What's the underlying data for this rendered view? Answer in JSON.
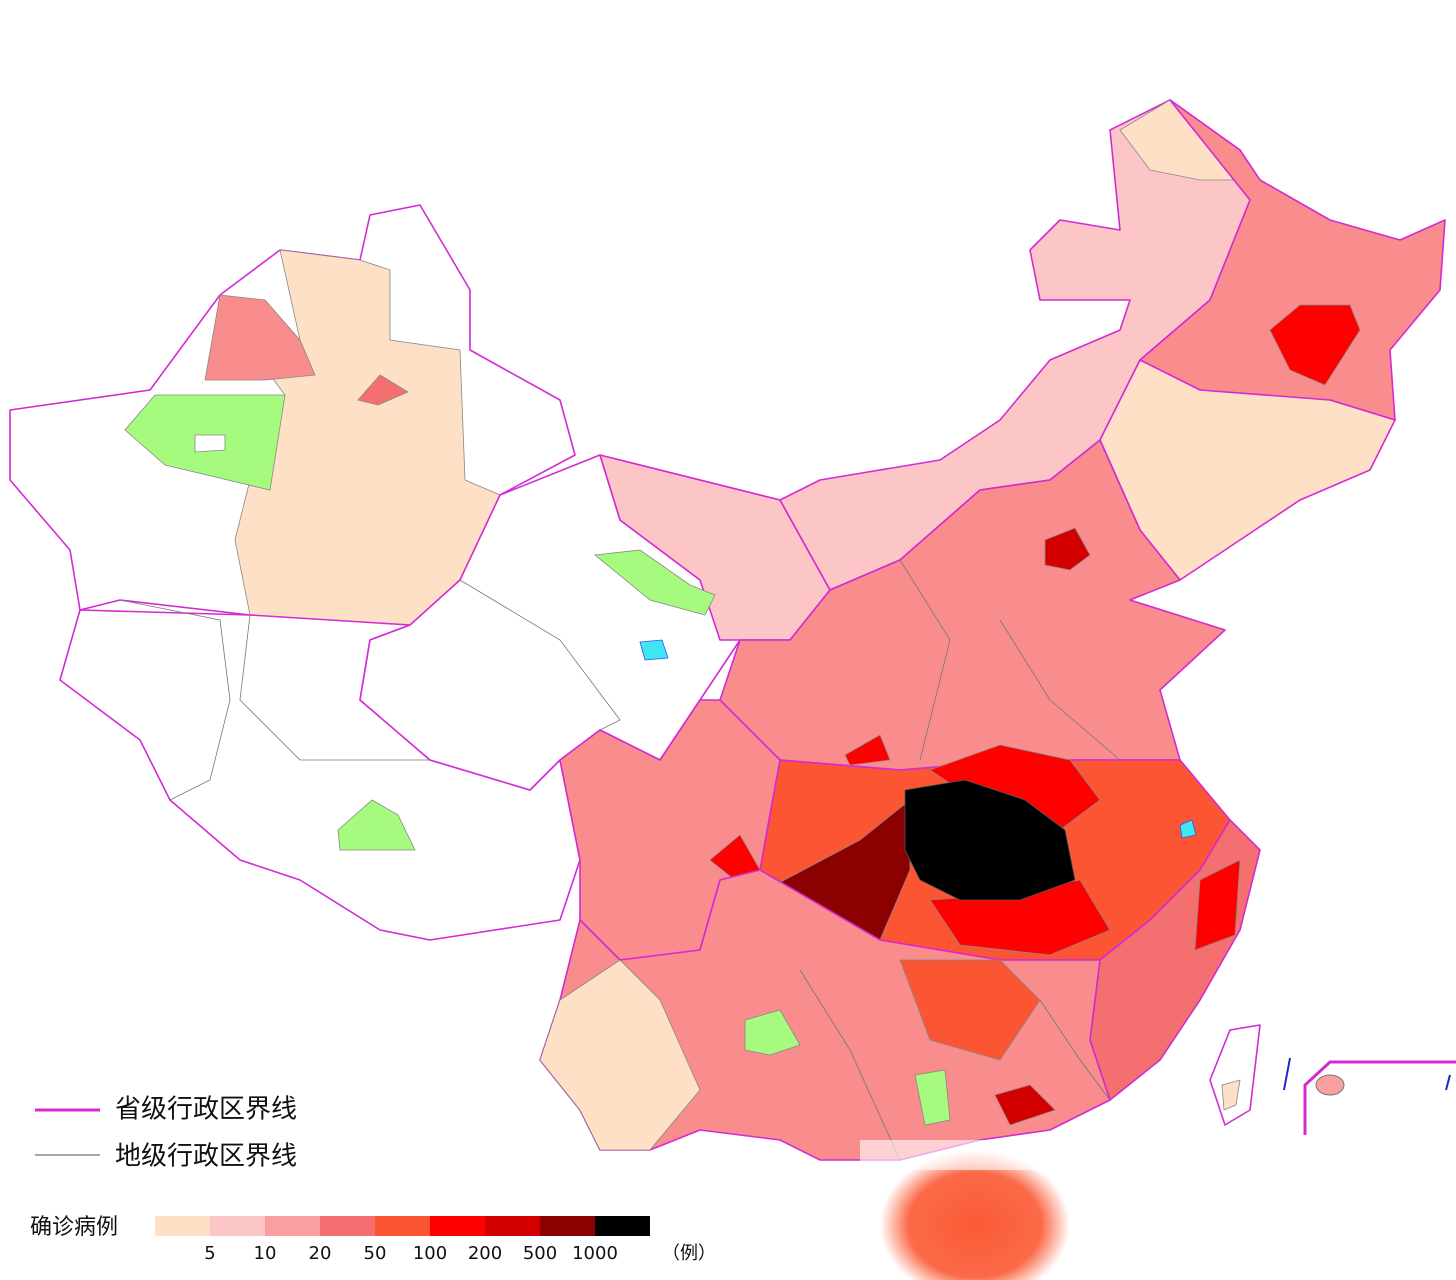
{
  "legend": {
    "boundaries": [
      {
        "label": "省级行政区界线",
        "color": "#d42ad4"
      },
      {
        "label": "地级行政区界线",
        "color": "#888888"
      }
    ],
    "scale": {
      "title": "确诊病例",
      "colors": [
        "#fde0c6",
        "#fcc6c6",
        "#fa9f9f",
        "#f46f6f",
        "#fb5533",
        "#fe0000",
        "#d30000",
        "#8b0000",
        "#000000"
      ],
      "thresholds": [
        5,
        10,
        20,
        50,
        100,
        200,
        500,
        1000
      ],
      "unit": "（例）"
    }
  }
}
